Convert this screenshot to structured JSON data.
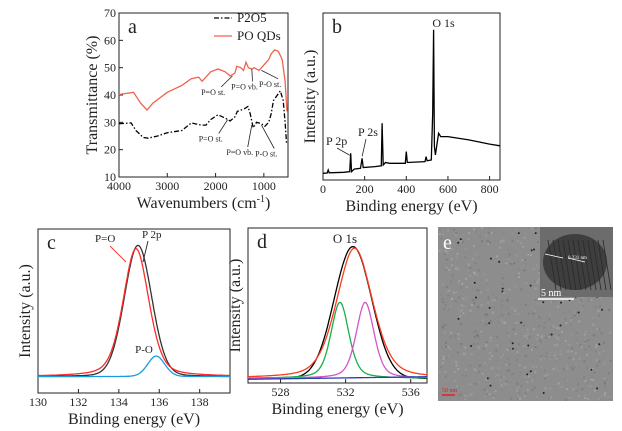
{
  "chart_data": [
    {
      "panel": "a",
      "type": "line",
      "xlabel": "Wavenumbers (cm-1)",
      "ylabel": "Transmittance (%)",
      "xlim": [
        4000,
        500
      ],
      "ylim": [
        10,
        70
      ],
      "xticks": [
        4000,
        3000,
        2000,
        1000
      ],
      "yticks": [
        10,
        20,
        30,
        40,
        50,
        60,
        70
      ],
      "legend": "top-right",
      "series": [
        {
          "name": "P2O5",
          "color": "#000000",
          "style": "dash-dot",
          "points": [
            [
              4000,
              29.5
            ],
            [
              3750,
              29.8
            ],
            [
              3650,
              27
            ],
            [
              3500,
              24.5
            ],
            [
              3400,
              24.2
            ],
            [
              3200,
              25
            ],
            [
              3000,
              26.2
            ],
            [
              2700,
              27
            ],
            [
              2500,
              29.8
            ],
            [
              2300,
              29
            ],
            [
              2200,
              29
            ],
            [
              2100,
              31
            ],
            [
              1950,
              32.8
            ],
            [
              1800,
              31.5
            ],
            [
              1700,
              30.5
            ],
            [
              1600,
              32
            ],
            [
              1550,
              34
            ],
            [
              1400,
              35
            ],
            [
              1330,
              35.8
            ],
            [
              1280,
              33
            ],
            [
              1220,
              28
            ],
            [
              1150,
              30
            ],
            [
              1050,
              29.5
            ],
            [
              980,
              28.5
            ],
            [
              900,
              30
            ],
            [
              850,
              33
            ],
            [
              800,
              38
            ],
            [
              720,
              40
            ],
            [
              660,
              41.5
            ],
            [
              600,
              38
            ],
            [
              560,
              30
            ],
            [
              530,
              22
            ]
          ]
        },
        {
          "name": "PO QDs",
          "color": "#f0624d",
          "style": "solid",
          "points": [
            [
              4000,
              40.2
            ],
            [
              3700,
              41
            ],
            [
              3550,
              37
            ],
            [
              3420,
              34.5
            ],
            [
              3300,
              37
            ],
            [
              3000,
              41
            ],
            [
              2700,
              43.5
            ],
            [
              2500,
              46
            ],
            [
              2350,
              46.5
            ],
            [
              2280,
              45
            ],
            [
              2100,
              48.5
            ],
            [
              1950,
              49.5
            ],
            [
              1800,
              48.5
            ],
            [
              1700,
              47
            ],
            [
              1600,
              48
            ],
            [
              1560,
              50.5
            ],
            [
              1480,
              50
            ],
            [
              1420,
              49
            ],
            [
              1370,
              52
            ],
            [
              1320,
              50
            ],
            [
              1250,
              49.5
            ],
            [
              1200,
              50
            ],
            [
              1100,
              49
            ],
            [
              1000,
              51
            ],
            [
              900,
              53
            ],
            [
              850,
              55
            ],
            [
              780,
              56.5
            ],
            [
              700,
              56
            ],
            [
              620,
              53
            ],
            [
              560,
              45
            ],
            [
              520,
              34
            ]
          ]
        }
      ],
      "annotations": [
        {
          "text": "P=O st.",
          "at": [
            1650,
            47
          ],
          "label_at": [
            2050,
            40
          ]
        },
        {
          "text": "P=O vb.",
          "at": [
            1250,
            49.5
          ],
          "label_at": [
            1400,
            42
          ]
        },
        {
          "text": "P-O st.",
          "at": [
            1050,
            49
          ],
          "label_at": [
            870,
            43
          ]
        },
        {
          "text": "P=O st.",
          "at": [
            1750,
            31
          ],
          "label_at": [
            2100,
            23
          ]
        },
        {
          "text": "P=O vb.",
          "at": [
            1250,
            29
          ],
          "label_at": [
            1500,
            18
          ]
        },
        {
          "text": "P-O st.",
          "at": [
            1050,
            29
          ],
          "label_at": [
            950,
            17.5
          ]
        }
      ]
    },
    {
      "panel": "b",
      "type": "line",
      "xlabel": "Binding energy (eV)",
      "ylabel": "Intensity (a.u.)",
      "xlim": [
        0,
        850
      ],
      "ylim": [
        0,
        100
      ],
      "xticks": [
        0,
        200,
        400,
        600,
        800
      ],
      "series": [
        {
          "color": "#000000",
          "points": [
            [
              0,
              4
            ],
            [
              20,
              4.2
            ],
            [
              25,
              6
            ],
            [
              30,
              4.3
            ],
            [
              100,
              4.6
            ],
            [
              128,
              5
            ],
            [
              133,
              16
            ],
            [
              137,
              5
            ],
            [
              150,
              6.5
            ],
            [
              180,
              7
            ],
            [
              188,
              13
            ],
            [
              193,
              7.5
            ],
            [
              250,
              8
            ],
            [
              280,
              8.5
            ],
            [
              284,
              34
            ],
            [
              289,
              9
            ],
            [
              300,
              10.5
            ],
            [
              320,
              10
            ],
            [
              395,
              10
            ],
            [
              400,
              17
            ],
            [
              405,
              10.5
            ],
            [
              490,
              11
            ],
            [
              495,
              14
            ],
            [
              500,
              11.5
            ],
            [
              520,
              12
            ],
            [
              527,
              40
            ],
            [
              531,
              90
            ],
            [
              535,
              20
            ],
            [
              540,
              15
            ],
            [
              555,
              28
            ],
            [
              565,
              26
            ],
            [
              600,
              26
            ],
            [
              700,
              24
            ],
            [
              800,
              21.5
            ],
            [
              850,
              20.5
            ]
          ]
        }
      ],
      "annotations": [
        {
          "text": "O 1s",
          "at": [
            531,
            90
          ]
        },
        {
          "text": "P 2p",
          "at": [
            133,
            16
          ]
        },
        {
          "text": "P 2s",
          "at": [
            188,
            13
          ]
        }
      ]
    },
    {
      "panel": "c",
      "type": "line",
      "xlabel": "Binding energy (eV)",
      "ylabel": "Intensity (a.u.)",
      "xlim": [
        130,
        139.5
      ],
      "ylim": [
        0,
        100
      ],
      "xticks": [
        130,
        132,
        134,
        136,
        138
      ],
      "baseline": 10,
      "series": [
        {
          "name": "P 2p",
          "color": "#333333",
          "center": 134.95,
          "height": 80,
          "fwhm": 1.6,
          "lorentz": 0.1
        },
        {
          "name": "P=O",
          "color": "#ff2a2a",
          "center": 134.85,
          "height": 78,
          "fwhm": 1.5,
          "lorentz": 0.35
        },
        {
          "name": "P-O",
          "color": "#1a9be0",
          "center": 135.85,
          "height": 12.5,
          "fwhm": 1.0,
          "lorentz": 0.1
        }
      ]
    },
    {
      "panel": "d",
      "type": "line",
      "xlabel": "Binding energy (eV)",
      "ylabel": "Intensity (a.u.)",
      "title": "O 1s",
      "xlim": [
        526,
        537
      ],
      "ylim": [
        0,
        100
      ],
      "xticks": [
        528,
        532,
        536
      ],
      "baseline": 3,
      "series": [
        {
          "color": "#000000",
          "center": 532.45,
          "height": 85,
          "fwhm": 2.7,
          "lorentz": 0.0
        },
        {
          "color": "#ff3b1f",
          "center": 532.55,
          "height": 84,
          "fwhm": 2.6,
          "lorentz": 0.35
        },
        {
          "color": "#19b04a",
          "center": 531.65,
          "height": 49,
          "fwhm": 1.3,
          "lorentz": 0.4
        },
        {
          "color": "#d455c8",
          "center": 533.2,
          "height": 49,
          "fwhm": 1.3,
          "lorentz": 0.4
        },
        {
          "color": "#2a3fb0",
          "center": 532,
          "height": 0,
          "fwhm": 1,
          "lorentz": 0
        }
      ]
    }
  ],
  "panels": {
    "a": {
      "label": "a",
      "legend": [
        "P2O5",
        "PO QDs"
      ]
    },
    "b": {
      "label": "b"
    },
    "c": {
      "label": "c"
    },
    "d": {
      "label": "d"
    },
    "e": {
      "label": "e",
      "inset_scale": "5 nm",
      "lattice_spacing": "0.231 nm",
      "scale_bar": "50 nm",
      "scale_color": "#e02020"
    }
  }
}
